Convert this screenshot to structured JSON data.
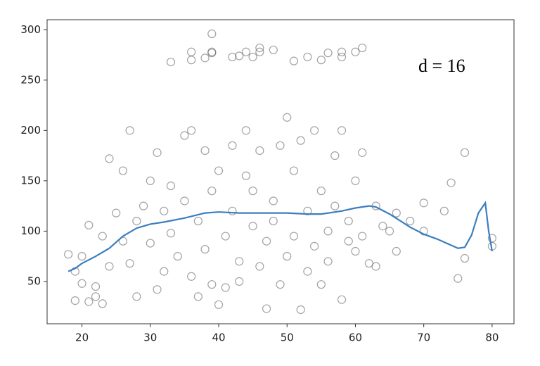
{
  "chart_data": {
    "type": "scatter",
    "annotation": "d = 16",
    "xlim": [
      14.9,
      83.2
    ],
    "ylim": [
      8,
      310
    ],
    "xticks": [
      20,
      30,
      40,
      50,
      60,
      70,
      80
    ],
    "yticks": [
      50,
      100,
      150,
      200,
      250,
      300
    ],
    "series": [
      {
        "type": "scatter",
        "color": "#555555",
        "x": [
          33,
          36,
          36,
          38,
          39,
          39,
          39,
          42,
          43,
          44,
          45,
          46,
          46,
          48,
          51,
          53,
          55,
          56,
          58,
          58,
          60,
          61,
          18,
          19,
          19,
          20,
          20,
          21,
          21,
          22,
          22,
          23,
          23,
          24,
          24,
          25,
          26,
          26,
          27,
          27,
          28,
          28,
          29,
          30,
          30,
          31,
          31,
          32,
          32,
          33,
          33,
          34,
          35,
          35,
          36,
          36,
          37,
          37,
          38,
          38,
          39,
          39,
          40,
          40,
          41,
          41,
          42,
          42,
          43,
          43,
          44,
          44,
          45,
          45,
          46,
          46,
          47,
          47,
          48,
          48,
          49,
          49,
          50,
          50,
          51,
          51,
          52,
          52,
          53,
          53,
          54,
          54,
          55,
          55,
          56,
          56,
          57,
          57,
          58,
          58,
          59,
          59,
          60,
          60,
          61,
          61,
          62,
          63,
          63,
          64,
          65,
          66,
          66,
          68,
          70,
          70,
          73,
          74,
          75,
          76,
          76,
          80,
          80
        ],
        "values": [
          268,
          278,
          270,
          272,
          278,
          296,
          277,
          273,
          274,
          278,
          273,
          282,
          278,
          280,
          269,
          273,
          270,
          277,
          273,
          278,
          278,
          282,
          77,
          31,
          60,
          48,
          75,
          30,
          106,
          45,
          35,
          28,
          95,
          172,
          65,
          118,
          160,
          90,
          200,
          68,
          35,
          110,
          125,
          88,
          150,
          42,
          178,
          120,
          60,
          98,
          145,
          75,
          130,
          195,
          200,
          55,
          110,
          35,
          180,
          82,
          47,
          140,
          27,
          160,
          95,
          44,
          185,
          120,
          50,
          70,
          200,
          155,
          105,
          140,
          65,
          180,
          90,
          23,
          130,
          110,
          47,
          185,
          213,
          75,
          160,
          95,
          22,
          190,
          60,
          120,
          85,
          200,
          47,
          140,
          100,
          70,
          125,
          175,
          32,
          200,
          90,
          110,
          150,
          80,
          178,
          95,
          68,
          125,
          65,
          105,
          100,
          80,
          118,
          110,
          128,
          100,
          120,
          148,
          53,
          178,
          73,
          93,
          85
        ]
      },
      {
        "type": "line",
        "color": "#3a7ebf",
        "x": [
          18,
          19,
          20,
          22,
          24,
          26,
          28,
          30,
          32,
          35,
          38,
          40,
          43,
          46,
          50,
          53,
          55,
          58,
          60,
          62,
          63,
          65,
          68,
          70,
          72,
          74,
          75,
          76,
          77,
          78,
          79,
          79.5,
          80
        ],
        "values": [
          60,
          63,
          68,
          75,
          83,
          95,
          103,
          107,
          109,
          113,
          118,
          119,
          118,
          118,
          118,
          117,
          117,
          120,
          123,
          125,
          124,
          117,
          104,
          97,
          92,
          86,
          83,
          84,
          96,
          118,
          128,
          100,
          80
        ]
      }
    ]
  }
}
